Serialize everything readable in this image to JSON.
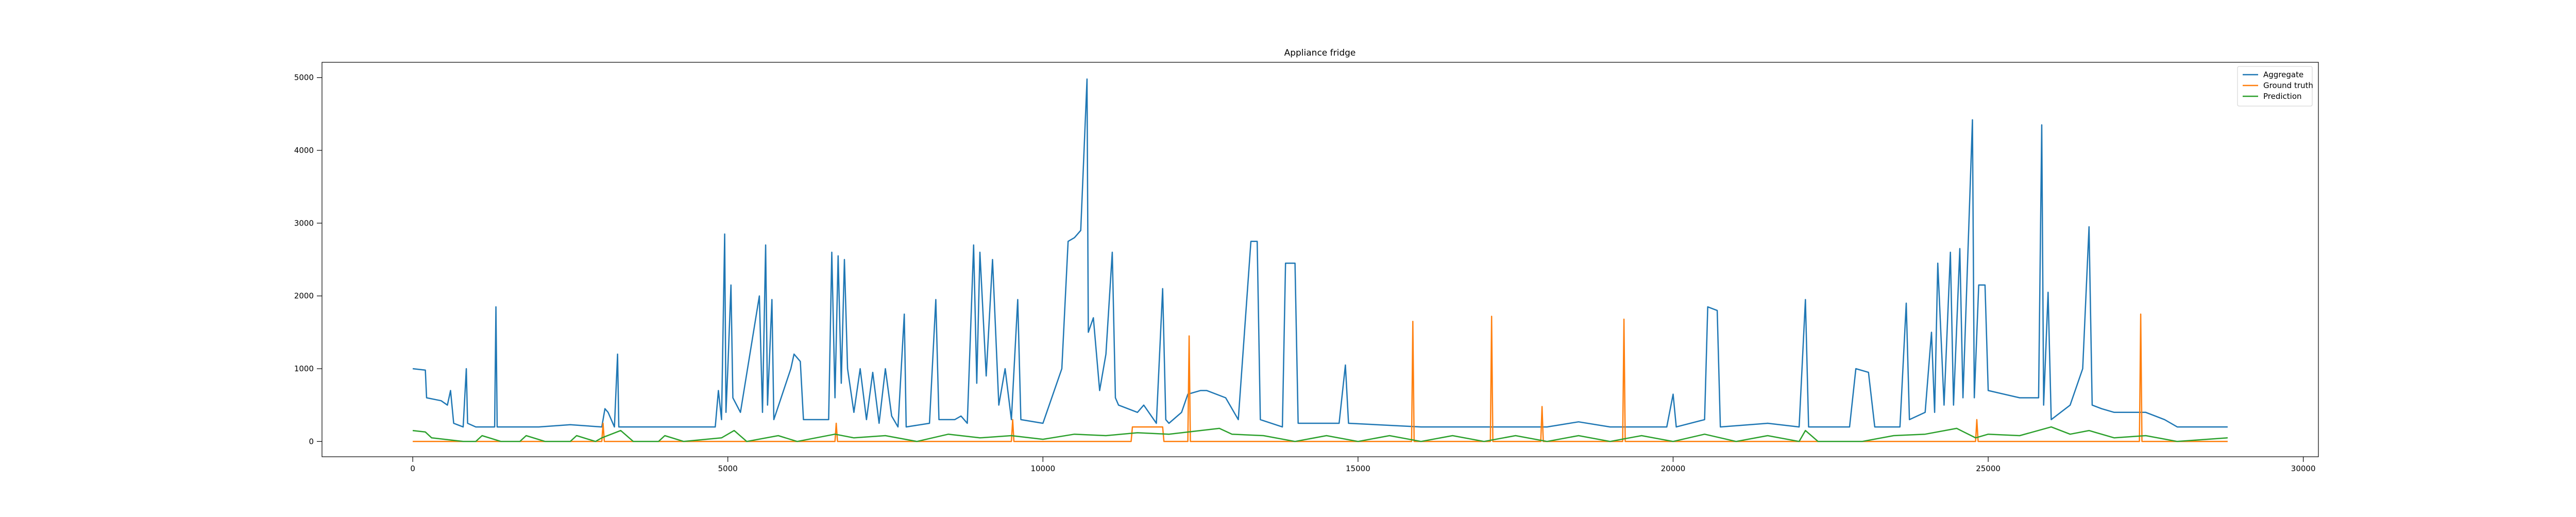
{
  "chart_data": {
    "type": "line",
    "title": "Appliance fridge",
    "xlim": [
      -1440,
      30240
    ],
    "ylim": [
      -210,
      5210
    ],
    "xticks": [
      0,
      5000,
      10000,
      15000,
      20000,
      25000,
      30000
    ],
    "yticks": [
      0,
      1000,
      2000,
      3000,
      4000,
      5000
    ],
    "grid": false,
    "legend": "upper right",
    "series": [
      {
        "name": "Aggregate",
        "color": "#1f77b4",
        "x": [
          0,
          200,
          220,
          450,
          550,
          600,
          650,
          800,
          850,
          870,
          1000,
          1300,
          1320,
          1340,
          2000,
          2500,
          3000,
          3050,
          3100,
          3200,
          3250,
          3270,
          4800,
          4850,
          4900,
          4950,
          4970,
          5000,
          5050,
          5080,
          5200,
          5500,
          5550,
          5600,
          5630,
          5700,
          5730,
          6000,
          6050,
          6150,
          6200,
          6600,
          6650,
          6700,
          6750,
          6800,
          6850,
          6900,
          7000,
          7100,
          7200,
          7300,
          7400,
          7500,
          7600,
          7700,
          7800,
          7830,
          8200,
          8300,
          8350,
          8600,
          8700,
          8800,
          8900,
          8950,
          9000,
          9100,
          9200,
          9300,
          9400,
          9500,
          9600,
          9650,
          10000,
          10300,
          10400,
          10500,
          10600,
          10700,
          10720,
          10800,
          10900,
          11000,
          11100,
          11150,
          11200,
          11500,
          11600,
          11800,
          11900,
          11950,
          12000,
          12200,
          12300,
          12500,
          12600,
          12900,
          13100,
          13300,
          13400,
          13450,
          13800,
          13850,
          14000,
          14050,
          14700,
          14800,
          14850,
          16000,
          16500,
          17000,
          18000,
          18500,
          19000,
          19900,
          20000,
          20050,
          20500,
          20550,
          20700,
          20750,
          21500,
          22000,
          22100,
          22150,
          22800,
          22900,
          23100,
          23200,
          23600,
          23700,
          23750,
          24000,
          24100,
          24150,
          24200,
          24300,
          24400,
          24450,
          24550,
          24600,
          24750,
          24780,
          24850,
          24950,
          25000,
          25500,
          25800,
          25850,
          25880,
          25950,
          26000,
          26300,
          26500,
          26600,
          26650,
          26800,
          27000,
          27500,
          27800,
          28000,
          28800
        ],
        "values": [
          1000,
          980,
          600,
          560,
          500,
          700,
          250,
          200,
          1000,
          250,
          200,
          200,
          1850,
          200,
          200,
          230,
          200,
          450,
          400,
          200,
          1200,
          200,
          200,
          700,
          300,
          2850,
          400,
          1000,
          2150,
          600,
          400,
          2000,
          400,
          2700,
          500,
          1950,
          300,
          1000,
          1200,
          1100,
          300,
          300,
          2600,
          600,
          2550,
          800,
          2500,
          1000,
          400,
          1000,
          300,
          950,
          250,
          1000,
          350,
          200,
          1750,
          200,
          250,
          1950,
          300,
          300,
          350,
          250,
          2700,
          800,
          2600,
          900,
          2500,
          500,
          1000,
          300,
          1950,
          300,
          250,
          1000,
          2750,
          2800,
          2900,
          4980,
          1500,
          1700,
          700,
          1200,
          2600,
          600,
          500,
          400,
          500,
          250,
          2100,
          300,
          250,
          400,
          650,
          700,
          700,
          600,
          300,
          2750,
          2750,
          300,
          200,
          2450,
          2450,
          250,
          250,
          1050,
          250,
          200,
          200,
          200,
          200,
          270,
          200,
          200,
          650,
          200,
          300,
          1850,
          1800,
          200,
          250,
          200,
          1950,
          200,
          200,
          1000,
          950,
          200,
          200,
          1900,
          300,
          400,
          1500,
          400,
          2450,
          500,
          2600,
          500,
          2650,
          600,
          4420,
          600,
          2150,
          2150,
          700,
          600,
          600,
          4350,
          500,
          2050,
          300,
          500,
          1000,
          2950,
          500,
          450,
          400,
          400,
          300,
          200,
          200
        ]
      },
      {
        "name": "Ground truth",
        "color": "#ff7f0e",
        "x": [
          0,
          1000,
          3000,
          3020,
          3040,
          6700,
          6720,
          6740,
          9500,
          9520,
          9540,
          11400,
          11420,
          11900,
          11920,
          12300,
          12320,
          12340,
          15850,
          15870,
          15890,
          17100,
          17120,
          17140,
          17900,
          17920,
          17940,
          19200,
          19220,
          19240,
          24800,
          24820,
          24840,
          27400,
          27420,
          27440,
          28800
        ],
        "values": [
          0,
          0,
          0,
          250,
          0,
          0,
          250,
          0,
          0,
          300,
          0,
          0,
          200,
          200,
          0,
          0,
          1450,
          0,
          0,
          1650,
          0,
          0,
          1720,
          0,
          0,
          480,
          0,
          0,
          1680,
          0,
          0,
          300,
          0,
          0,
          1750,
          0,
          0
        ]
      },
      {
        "name": "Prediction",
        "color": "#2ca02c",
        "x": [
          0,
          200,
          300,
          800,
          1000,
          1100,
          1400,
          1700,
          1800,
          2100,
          2500,
          2600,
          2900,
          3000,
          3300,
          3500,
          3900,
          4000,
          4300,
          4900,
          5100,
          5300,
          5800,
          6100,
          6700,
          7000,
          7500,
          8000,
          8500,
          9000,
          9500,
          10000,
          10500,
          11000,
          11500,
          12000,
          12500,
          12800,
          13000,
          13500,
          14000,
          14500,
          15000,
          15500,
          16000,
          16500,
          17000,
          17500,
          18000,
          18500,
          19000,
          19500,
          20000,
          20500,
          21000,
          21500,
          22000,
          22100,
          22300,
          23000,
          23500,
          24000,
          24500,
          24800,
          25000,
          25500,
          26000,
          26300,
          26600,
          27000,
          27500,
          28000,
          28800
        ],
        "values": [
          150,
          130,
          50,
          0,
          0,
          80,
          0,
          0,
          80,
          0,
          0,
          80,
          0,
          50,
          150,
          0,
          0,
          80,
          0,
          50,
          150,
          0,
          80,
          0,
          100,
          50,
          80,
          0,
          100,
          50,
          80,
          30,
          100,
          80,
          120,
          100,
          150,
          180,
          100,
          80,
          0,
          80,
          0,
          80,
          0,
          80,
          0,
          80,
          0,
          80,
          0,
          80,
          0,
          100,
          0,
          80,
          0,
          150,
          0,
          0,
          80,
          100,
          180,
          50,
          100,
          80,
          200,
          100,
          150,
          50,
          80,
          0,
          50
        ]
      }
    ]
  }
}
